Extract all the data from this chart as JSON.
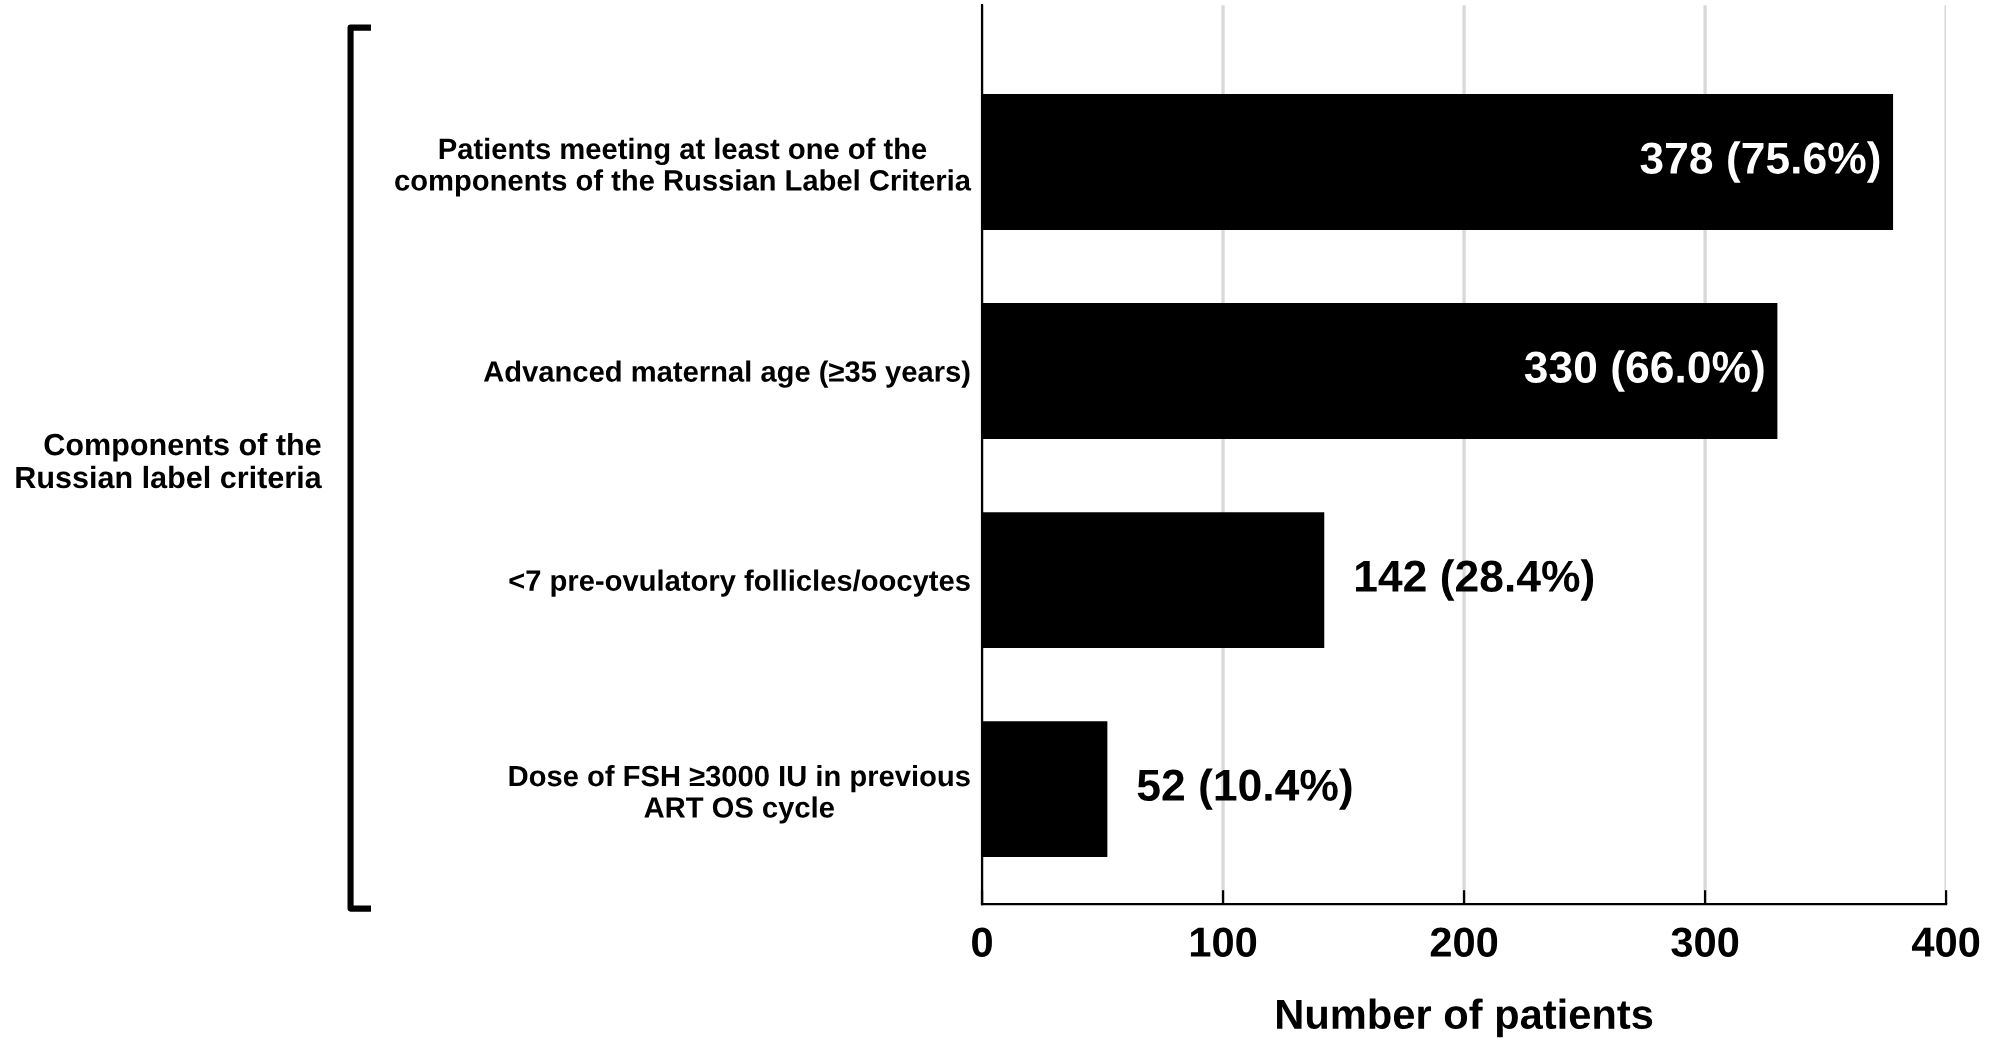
{
  "chart_data": {
    "type": "bar",
    "orientation": "horizontal",
    "xlabel": "Number of patients",
    "ylabel": "Components of the\nRussian label criteria",
    "categories": [
      "Patients meeting at least one of the\ncomponents of the Russian Label Criteria",
      "Advanced maternal age (≥35 years)",
      "<7 pre-ovulatory follicles/oocytes",
      "Dose of FSH ≥3000 IU in previous\nART OS cycle"
    ],
    "values": [
      378,
      330,
      142,
      52
    ],
    "value_labels": [
      "378 (75.6%)",
      "330 (66.0%)",
      "142 (28.4%)",
      "52 (10.4%)"
    ],
    "color": "#000000",
    "xlim": [
      0,
      400
    ],
    "xticks": [
      0,
      100,
      200,
      300,
      400
    ],
    "grid": "x"
  }
}
